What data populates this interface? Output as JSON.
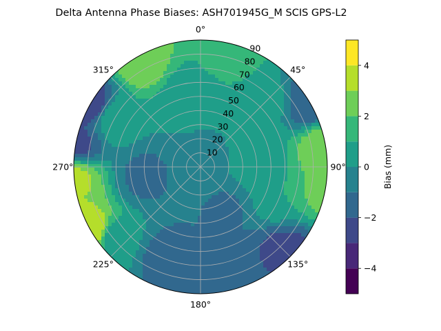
{
  "chart_data": {
    "type": "heatmap",
    "subtype": "polar-contour",
    "title": "Delta Antenna Phase Biases: ASH701945G_M    SCIS GPS-L2",
    "angular_axis": {
      "zero_location": "top",
      "direction": "clockwise",
      "tick_labels": [
        "0°",
        "45°",
        "90°",
        "135°",
        "180°",
        "225°",
        "270°",
        "315°"
      ]
    },
    "radial_axis": {
      "range": [
        0,
        90
      ],
      "tick_labels": [
        "10",
        "20",
        "30",
        "40",
        "50",
        "60",
        "70",
        "80",
        "90"
      ]
    },
    "grid": true,
    "colorbar": {
      "label": "Bias (mm)",
      "range": [
        -5,
        5
      ],
      "levels": [
        -5,
        -4,
        -3,
        -2,
        -1,
        0,
        1,
        2,
        3,
        4,
        5
      ],
      "tick_labels": [
        "−4",
        "−2",
        "0",
        "2",
        "4"
      ],
      "placement": "right",
      "colormap": "viridis",
      "colors": [
        "#440154",
        "#482878",
        "#3e4989",
        "#31688e",
        "#26828e",
        "#1f9e89",
        "#35b779",
        "#6ece58",
        "#b5de2b",
        "#fde725"
      ]
    },
    "regions": [
      {
        "az": 0,
        "zen": 0,
        "bias": -0.4
      },
      {
        "az": 150,
        "zen": 35,
        "bias": -1.1
      },
      {
        "az": 180,
        "zen": 55,
        "bias": -1.0
      },
      {
        "az": 260,
        "zen": 40,
        "bias": -1.2
      },
      {
        "az": 230,
        "zen": 78,
        "bias": 0.4
      },
      {
        "az": 300,
        "zen": 70,
        "bias": 1.0
      },
      {
        "az": 330,
        "zen": 85,
        "bias": 2.6
      },
      {
        "az": 15,
        "zen": 85,
        "bias": 1.6
      },
      {
        "az": 45,
        "zen": 65,
        "bias": 0.4
      },
      {
        "az": 60,
        "zen": 89,
        "bias": -1.8
      },
      {
        "az": 80,
        "zen": 89,
        "bias": 2.8
      },
      {
        "az": 100,
        "zen": 89,
        "bias": 2.5
      },
      {
        "az": 110,
        "zen": 60,
        "bias": 1.0
      },
      {
        "az": 135,
        "zen": 85,
        "bias": -2.4
      },
      {
        "az": 160,
        "zen": 88,
        "bias": -1.6
      },
      {
        "az": 265,
        "zen": 89,
        "bias": 3.2
      },
      {
        "az": 240,
        "zen": 89,
        "bias": 3.8
      },
      {
        "az": 280,
        "zen": 89,
        "bias": -2.2
      },
      {
        "az": 300,
        "zen": 89,
        "bias": -2.8
      },
      {
        "az": 200,
        "zen": 70,
        "bias": -1.5
      },
      {
        "az": 90,
        "zen": 40,
        "bias": 0.5
      },
      {
        "az": 350,
        "zen": 50,
        "bias": 0.3
      }
    ]
  }
}
